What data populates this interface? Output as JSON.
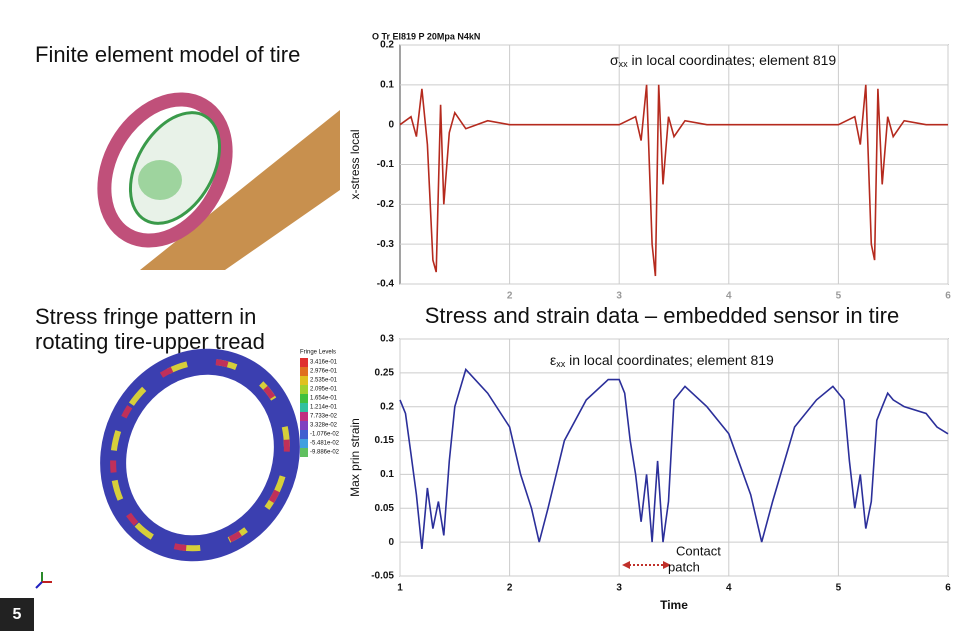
{
  "panels": {
    "model_title": "Finite element model of tire",
    "fringe_title_1": "Stress fringe pattern in",
    "fringe_title_2": "rotating tire-upper tread",
    "fringe_legend_title": "Fringe Levels",
    "fringe_levels": [
      "3.416e-01",
      "2.976e-01",
      "2.535e-01",
      "2.095e-01",
      "1.654e-01",
      "1.214e-01",
      "7.733e-02",
      "3.328e-02",
      "-1.076e-02",
      "-5.481e-02",
      "-9.886e-02"
    ],
    "heading": "Stress and strain data – embedded sensor in tire",
    "figure_number": "5"
  },
  "chart_data": [
    {
      "type": "line",
      "title": "O Tr El819 P 20Mpa N4kN",
      "annotation": {
        "symbol": "σ",
        "subscript": "xx",
        "text": " in local coordinates; element 819"
      },
      "y_label": "x-stress local",
      "x": [
        1.0,
        1.1,
        1.15,
        1.2,
        1.25,
        1.3,
        1.33,
        1.37,
        1.4,
        1.45,
        1.5,
        1.6,
        1.8,
        2.0,
        2.5,
        3.0,
        3.15,
        3.2,
        3.25,
        3.3,
        3.33,
        3.36,
        3.4,
        3.45,
        3.5,
        3.6,
        3.8,
        4.0,
        4.5,
        5.0,
        5.15,
        5.2,
        5.25,
        5.3,
        5.33,
        5.36,
        5.4,
        5.45,
        5.5,
        5.6,
        5.8,
        6.0
      ],
      "series": [
        {
          "color": "#b52a1e",
          "values": [
            0,
            0.02,
            -0.03,
            0.09,
            -0.05,
            -0.34,
            -0.37,
            0.05,
            -0.2,
            -0.02,
            0.03,
            -0.01,
            0.01,
            0,
            0,
            0,
            0.02,
            -0.04,
            0.1,
            -0.3,
            -0.38,
            0.1,
            -0.15,
            0.02,
            -0.03,
            0.01,
            0,
            0,
            0,
            0,
            0.02,
            -0.05,
            0.1,
            -0.3,
            -0.34,
            0.09,
            -0.15,
            0.02,
            -0.03,
            0.01,
            0,
            0
          ]
        }
      ],
      "xlim": [
        1,
        6
      ],
      "xticks": [
        2,
        3,
        4,
        5,
        6
      ],
      "ylim": [
        -0.4,
        0.2
      ],
      "yticks": [
        -0.4,
        -0.3,
        -0.2,
        -0.1,
        0,
        0.1,
        0.2
      ],
      "grid": true
    },
    {
      "type": "line",
      "annotation": {
        "symbol": "ε",
        "subscript": "xx",
        "text": " in local coordinates; element 819"
      },
      "x_label": "Time",
      "y_label": "Max prin strain",
      "contact_label_1": "Contact",
      "contact_label_2": "patch",
      "x": [
        1.0,
        1.05,
        1.1,
        1.15,
        1.2,
        1.25,
        1.3,
        1.35,
        1.4,
        1.45,
        1.5,
        1.6,
        1.8,
        2.0,
        2.1,
        2.2,
        2.27,
        2.35,
        2.5,
        2.7,
        2.9,
        3.0,
        3.05,
        3.1,
        3.15,
        3.2,
        3.25,
        3.3,
        3.35,
        3.4,
        3.45,
        3.5,
        3.6,
        3.8,
        4.0,
        4.2,
        4.3,
        4.4,
        4.6,
        4.8,
        4.95,
        5.05,
        5.1,
        5.15,
        5.2,
        5.25,
        5.3,
        5.35,
        5.4,
        5.45,
        5.5,
        5.6,
        5.8,
        5.9,
        6.0
      ],
      "series": [
        {
          "color": "#2b2f9a",
          "values": [
            0.21,
            0.19,
            0.13,
            0.07,
            -0.01,
            0.08,
            0.02,
            0.06,
            0.01,
            0.12,
            0.2,
            0.255,
            0.22,
            0.17,
            0.1,
            0.05,
            0.0,
            0.05,
            0.15,
            0.21,
            0.24,
            0.24,
            0.22,
            0.15,
            0.1,
            0.03,
            0.1,
            0.0,
            0.12,
            0.0,
            0.06,
            0.21,
            0.23,
            0.2,
            0.16,
            0.07,
            0.0,
            0.06,
            0.17,
            0.21,
            0.23,
            0.21,
            0.12,
            0.05,
            0.1,
            0.02,
            0.06,
            0.18,
            0.2,
            0.22,
            0.21,
            0.2,
            0.19,
            0.17,
            0.16
          ]
        }
      ],
      "xlim": [
        1,
        6
      ],
      "xticks": [
        1,
        2,
        3,
        4,
        5,
        6
      ],
      "ylim": [
        -0.05,
        0.3
      ],
      "yticks": [
        -0.05,
        0,
        0.05,
        0.1,
        0.15,
        0.2,
        0.25,
        0.3
      ],
      "grid": true
    }
  ]
}
